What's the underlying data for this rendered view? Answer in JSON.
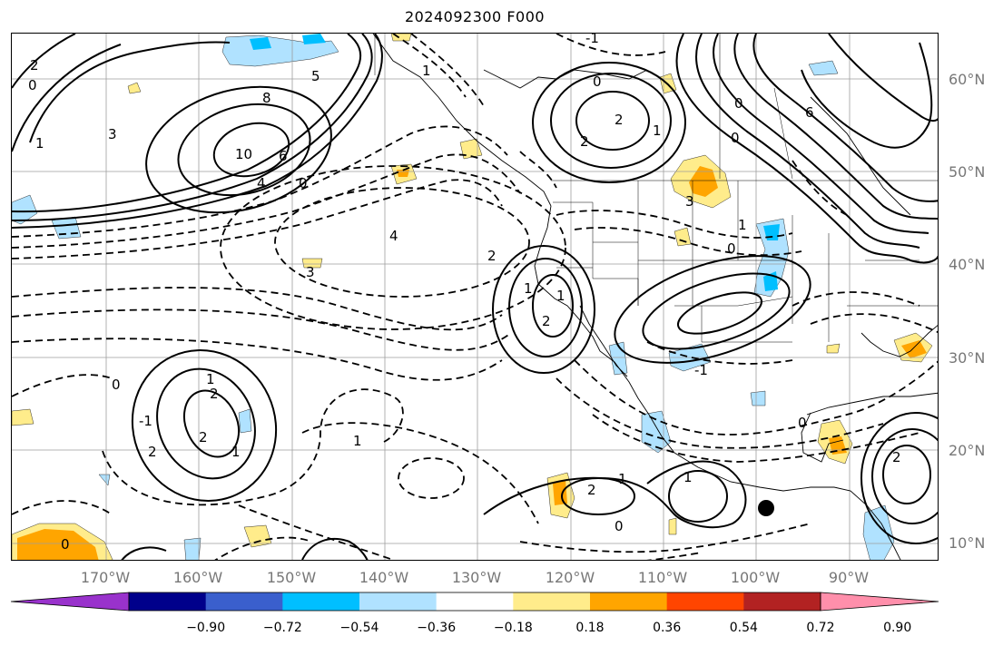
{
  "title": "2024092300 F000",
  "latitude_labels": [
    "60°N",
    "50°N",
    "40°N",
    "30°N",
    "20°N",
    "10°N"
  ],
  "longitude_labels": [
    "170°W",
    "160°W",
    "150°W",
    "140°W",
    "130°W",
    "120°W",
    "110°W",
    "100°W",
    "90°W"
  ],
  "colorbar": {
    "colors": [
      "#9932cc",
      "#00008b",
      "#3a5fcd",
      "#00bfff",
      "#b0e2ff",
      "#ffffff",
      "#ffec8b",
      "#ffa500",
      "#ff4500",
      "#b22222",
      "#ff8fab"
    ],
    "tick_labels": [
      "−0.90",
      "−0.72",
      "−0.54",
      "−0.36",
      "−0.18",
      "0.18",
      "0.36",
      "0.54",
      "0.72",
      "0.90"
    ]
  },
  "contour_labels": [
    "2",
    "0",
    "1",
    "3",
    "8",
    "5",
    "10",
    "6",
    "4",
    "1",
    "0",
    "2",
    "2",
    "-1",
    "1",
    "0",
    "0",
    "6",
    "4",
    "3",
    "0",
    "2",
    "1",
    "2",
    "1",
    "3",
    "0",
    "1",
    "-1",
    "0",
    "1",
    "2",
    "-1",
    "2",
    "1",
    "2",
    "1",
    "0",
    "0",
    "1",
    "2",
    "1",
    "0",
    "2"
  ],
  "features": {
    "marker": "black-dot-marker"
  },
  "colors": {
    "positive_fill": "#ffec8b",
    "strong_positive_fill": "#ffa500",
    "negative_fill": "#b0e2ff",
    "strong_negative_fill": "#00bfff",
    "grid": "#9e9e9e"
  }
}
